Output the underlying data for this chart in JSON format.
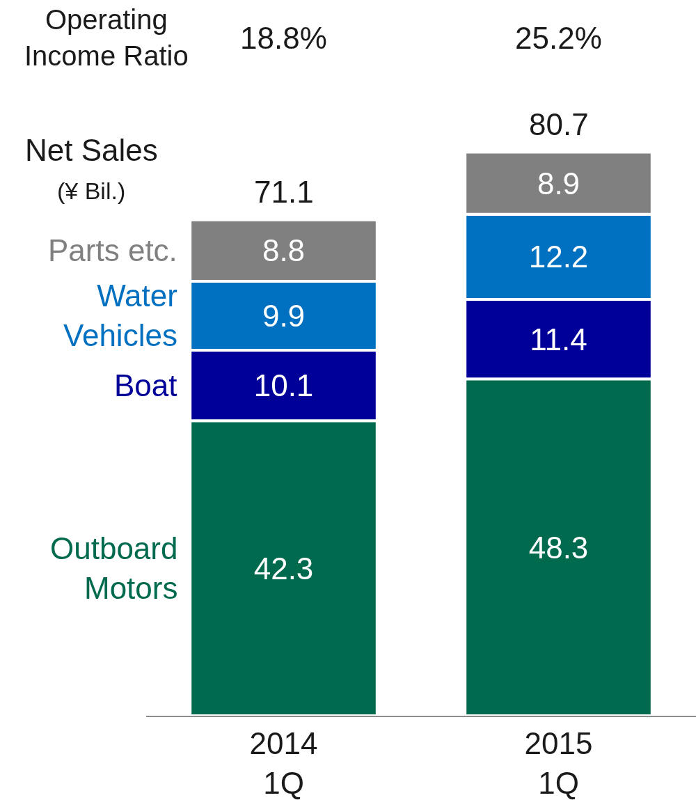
{
  "chart_data": {
    "type": "bar",
    "stacked": true,
    "data_labels": true,
    "categories": [
      "2014\n1Q",
      "2015\n1Q"
    ],
    "series": [
      {
        "name": "Outboard\nMotors",
        "color": "#006a4e",
        "values": [
          42.3,
          48.3
        ]
      },
      {
        "name": "Boat",
        "color": "#000099",
        "values": [
          10.1,
          11.4
        ]
      },
      {
        "name": "Water\nVehicles",
        "color": "#0070c0",
        "values": [
          9.9,
          12.2
        ]
      },
      {
        "name": "Parts etc.",
        "color": "#808080",
        "values": [
          8.8,
          8.9
        ]
      }
    ],
    "totals": [
      "71.1",
      "80.7"
    ],
    "annotations": [
      "Operating\nIncome Ratio",
      "18.8%",
      "25.2%",
      "Net Sales",
      "(¥ Bil.)"
    ],
    "legend": false
  }
}
